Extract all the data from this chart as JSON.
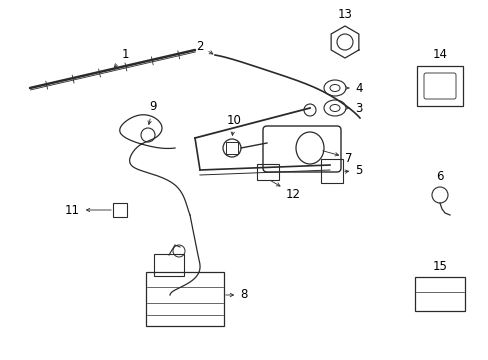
{
  "background_color": "#ffffff",
  "line_color": "#2a2a2a",
  "text_color": "#000000",
  "fig_w": 4.89,
  "fig_h": 3.6,
  "dpi": 100,
  "label_fontsize": 8.5,
  "arrow_lw": 0.6,
  "arrow_ms": 6
}
